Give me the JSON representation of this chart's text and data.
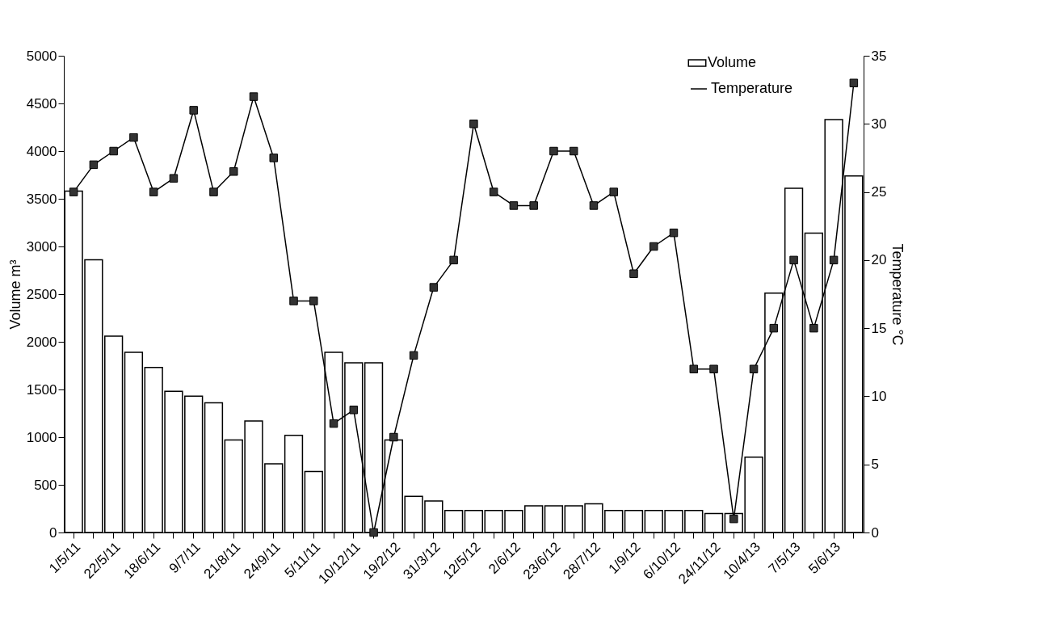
{
  "chart_data": {
    "type": "bar",
    "ylabel": "Volume m³",
    "y2label": "Temperature °C",
    "categories": [
      "1/5/11",
      null,
      "22/5/11",
      null,
      "18/6/11",
      null,
      "9/7/11",
      null,
      "21/8/11",
      null,
      "24/9/11",
      null,
      "5/11/11",
      null,
      "10/12/11",
      null,
      "19/2/12",
      null,
      "31/3/12",
      null,
      "12/5/12",
      null,
      "2/6/12",
      null,
      "23/6/12",
      null,
      "28/7/12",
      null,
      "1/9/12",
      null,
      "6/10/12",
      null,
      "24/11/12",
      null,
      "10/4/13",
      null,
      "7/5/13",
      null,
      "5/6/13",
      null
    ],
    "series": [
      {
        "name": "Volume",
        "color": "#ffffff",
        "values": [
          3580,
          2860,
          2060,
          1890,
          1730,
          1480,
          1430,
          1360,
          970,
          1170,
          720,
          1020,
          640,
          1890,
          1780,
          1780,
          970,
          380,
          330,
          230,
          230,
          230,
          230,
          280,
          280,
          280,
          300,
          230,
          230,
          230,
          230,
          230,
          200,
          200,
          790,
          2510,
          3610,
          3140,
          4330,
          3740
        ]
      },
      {
        "name": "Temperature",
        "type": "line",
        "axis": "y2",
        "color": "#000000",
        "values": [
          25,
          27,
          28,
          29,
          25,
          26,
          31,
          25,
          26.5,
          32,
          27.5,
          17,
          17,
          8,
          9,
          0,
          7,
          13,
          18,
          20,
          30,
          25,
          24,
          24,
          28,
          28,
          24,
          25,
          19,
          21,
          22,
          12,
          12,
          1,
          12,
          15,
          20,
          15,
          20,
          33
        ]
      }
    ],
    "ylim": [
      0,
      5000
    ],
    "yticks": [
      0,
      500,
      1000,
      1500,
      2000,
      2500,
      3000,
      3500,
      4000,
      4500,
      5000
    ],
    "y2lim": [
      0,
      35
    ],
    "y2ticks": [
      0,
      5,
      10,
      15,
      20,
      25,
      30,
      35
    ],
    "legend": "top right",
    "marker": "square",
    "line_style": "solid",
    "grid": false
  }
}
